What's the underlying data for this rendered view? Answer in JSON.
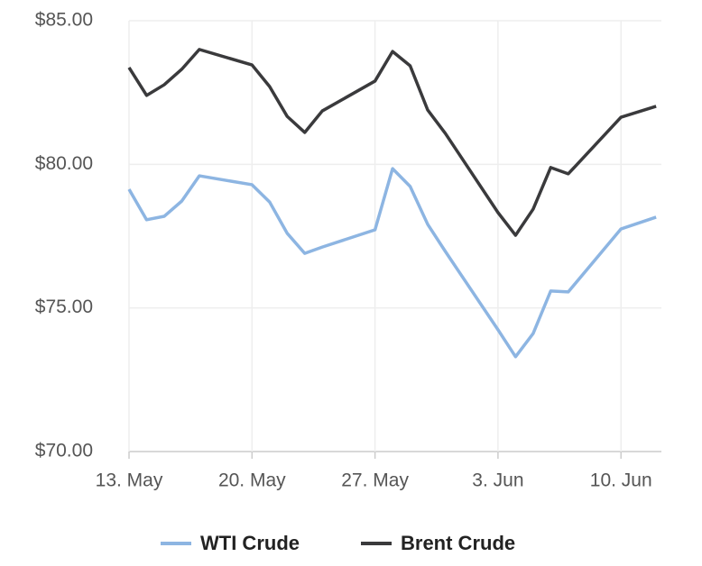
{
  "chart_data": {
    "type": "line",
    "x": [
      0,
      1,
      2,
      3,
      4,
      7,
      8,
      9,
      10,
      11,
      14,
      15,
      16,
      17,
      18,
      21,
      22,
      23,
      24,
      25,
      28,
      30
    ],
    "series": [
      {
        "name": "WTI Crude",
        "color": "#8db5e2",
        "values": [
          79.13,
          78.07,
          78.19,
          78.72,
          79.6,
          79.29,
          78.69,
          77.6,
          76.9,
          77.12,
          77.72,
          79.85,
          79.23,
          77.91,
          76.97,
          74.24,
          73.3,
          74.11,
          75.59,
          75.56,
          77.75,
          78.16
        ]
      },
      {
        "name": "Brent Crude",
        "color": "#3a3a3c",
        "values": [
          83.37,
          82.4,
          82.77,
          83.31,
          84.0,
          83.46,
          82.71,
          81.67,
          81.11,
          81.86,
          82.9,
          83.93,
          83.43,
          81.89,
          81.08,
          78.32,
          77.53,
          78.44,
          79.89,
          79.67,
          81.64,
          82.02
        ]
      }
    ],
    "xlim": [
      0,
      30.3
    ],
    "xticks": [
      {
        "value": 0,
        "label": "13. May"
      },
      {
        "value": 7,
        "label": "20. May"
      },
      {
        "value": 14,
        "label": "27. May"
      },
      {
        "value": 21,
        "label": "3. Jun"
      },
      {
        "value": 28,
        "label": "10. Jun"
      }
    ],
    "ylim": [
      70,
      85
    ],
    "yticks": [
      {
        "value": 70,
        "label": "$70.00"
      },
      {
        "value": 75,
        "label": "$75.00"
      },
      {
        "value": 80,
        "label": "$80.00"
      },
      {
        "value": 85,
        "label": "$85.00"
      }
    ],
    "grid": true,
    "legend": "bottom"
  }
}
